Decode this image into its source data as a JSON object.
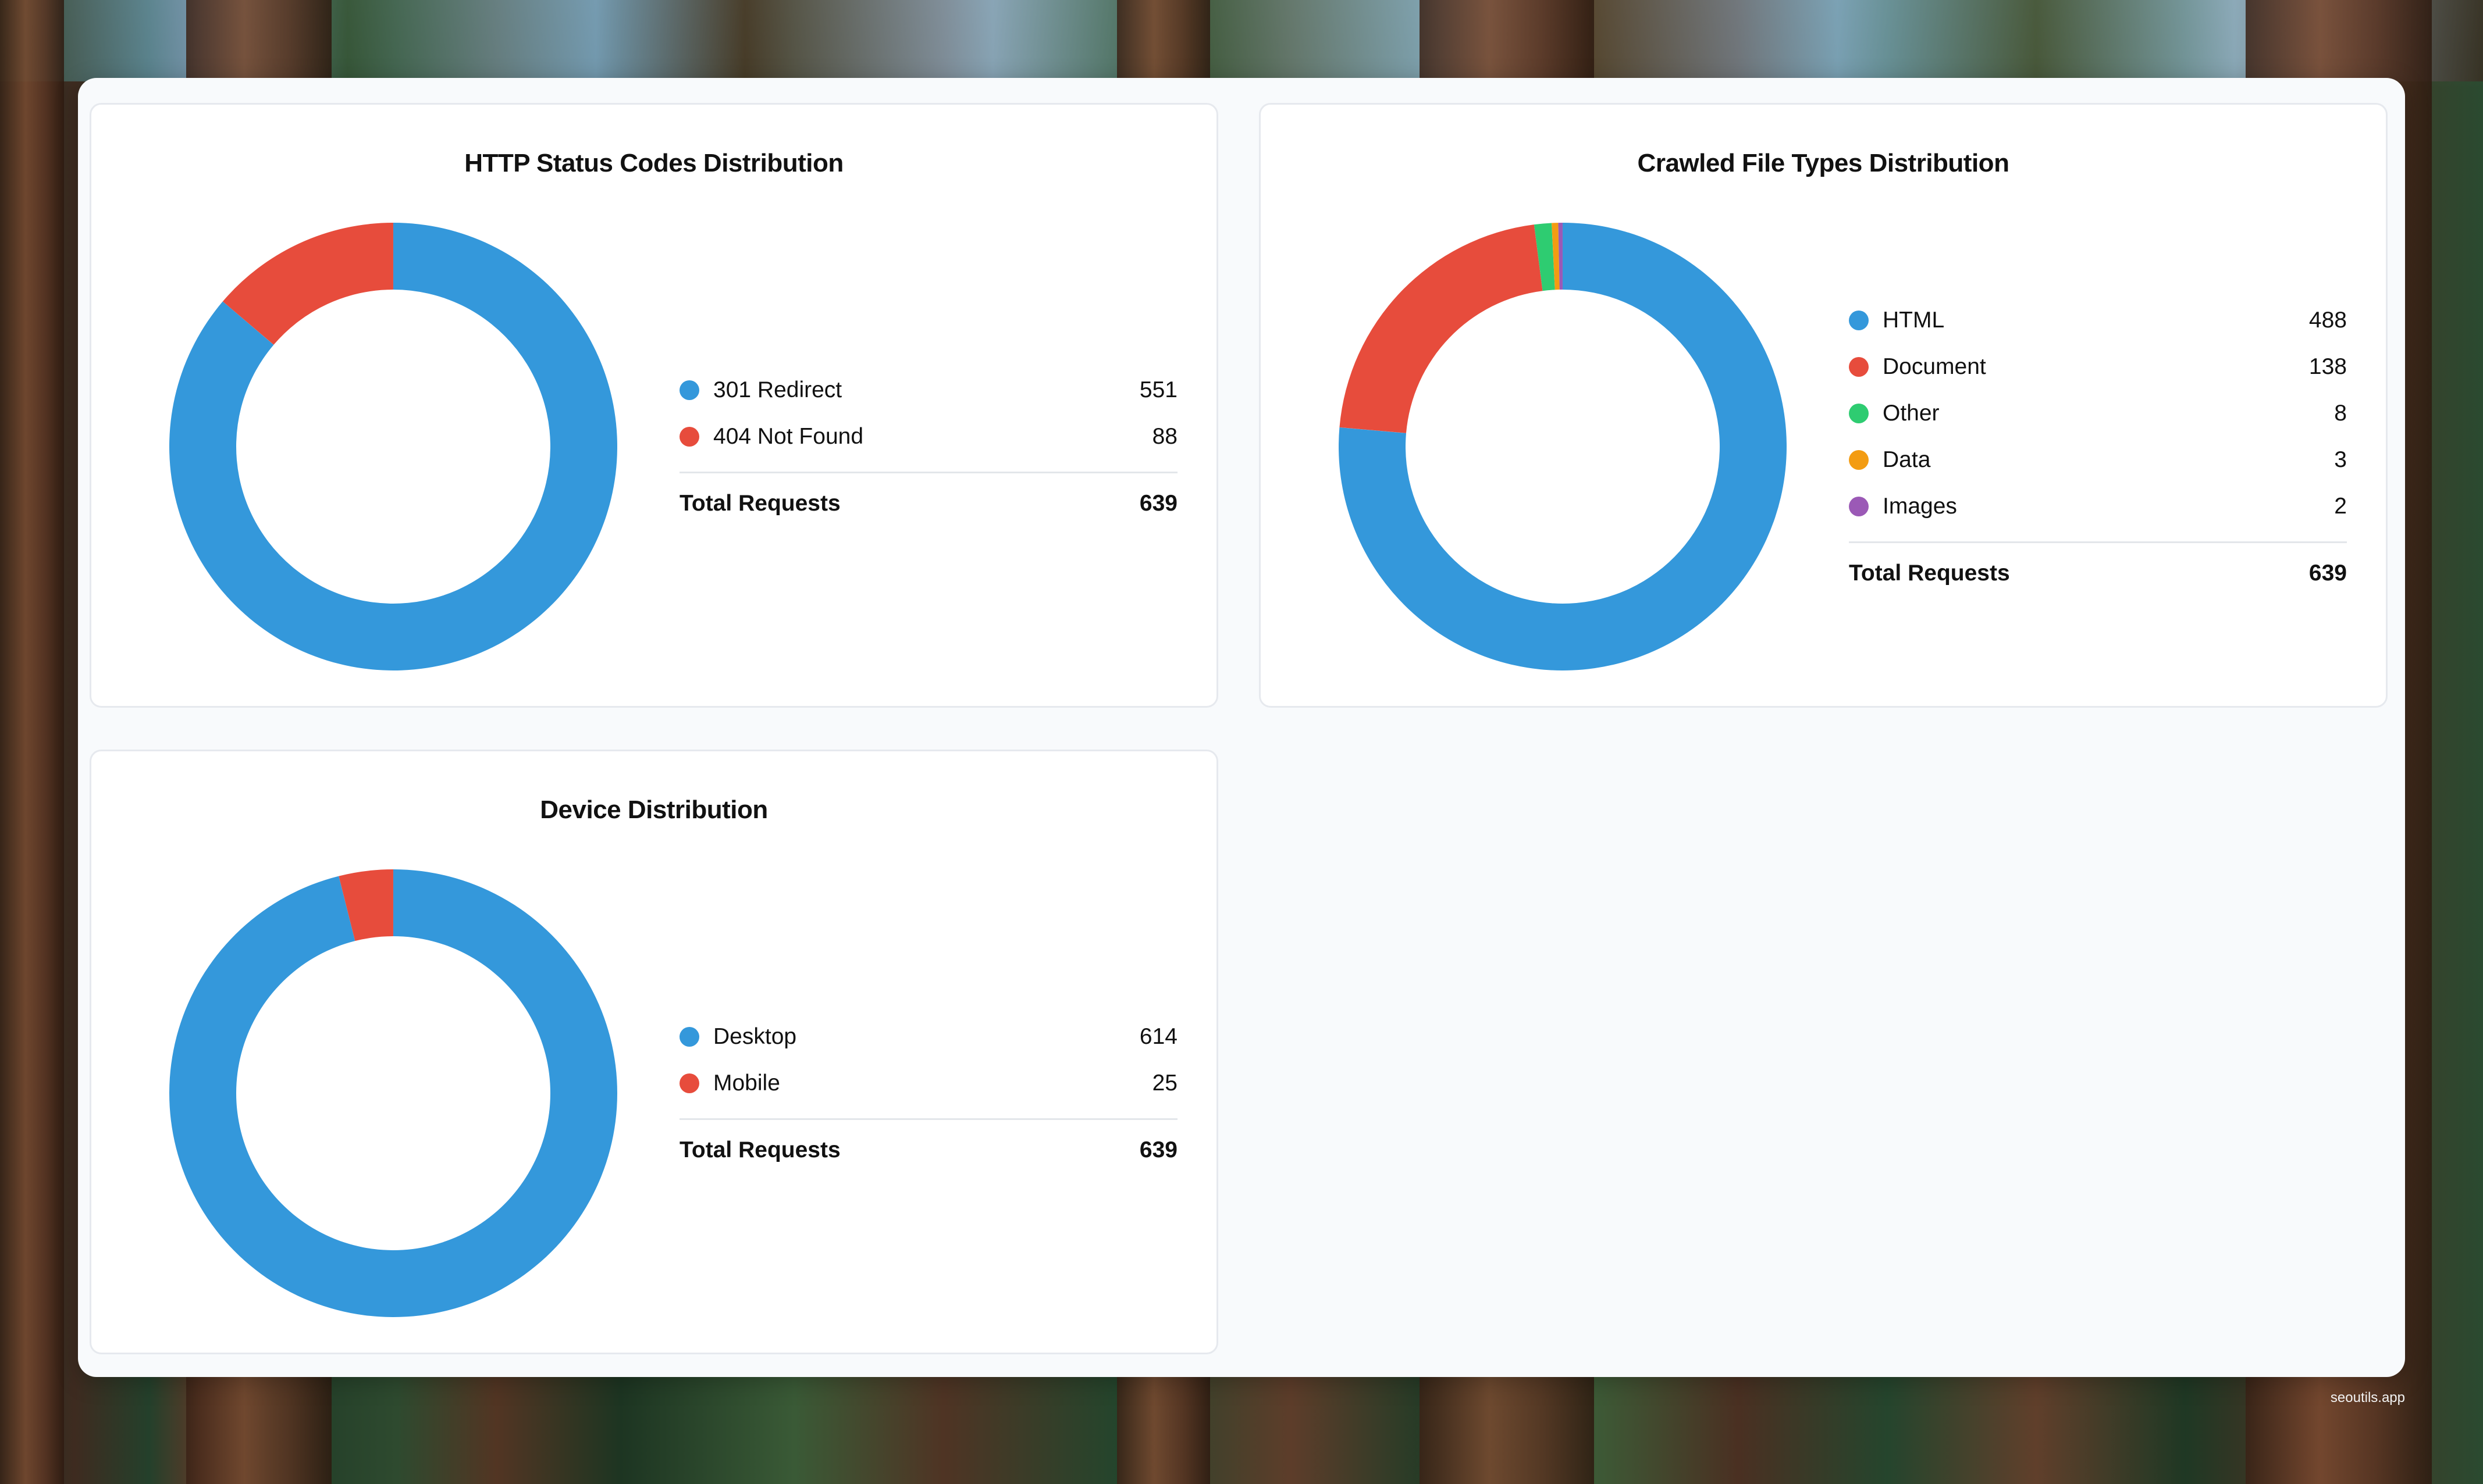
{
  "footer": {
    "brand": "seoutils.app"
  },
  "colors": {
    "blue": "#3498db",
    "red": "#e74c3c",
    "green": "#2ecc71",
    "orange": "#f39c12",
    "purple": "#9b59b6"
  },
  "chart_data": [
    {
      "type": "pie",
      "title": "HTTP Status Codes Distribution",
      "categories": [
        "301 Redirect",
        "404 Not Found"
      ],
      "values": [
        551,
        88
      ],
      "colors": [
        "#3498db",
        "#e74c3c"
      ],
      "total_label": "Total Requests",
      "total": 639,
      "legend": "right"
    },
    {
      "type": "pie",
      "title": "Crawled File Types Distribution",
      "categories": [
        "HTML",
        "Document",
        "Other",
        "Data",
        "Images"
      ],
      "values": [
        488,
        138,
        8,
        3,
        2
      ],
      "colors": [
        "#3498db",
        "#e74c3c",
        "#2ecc71",
        "#f39c12",
        "#9b59b6"
      ],
      "total_label": "Total Requests",
      "total": 639,
      "legend": "right"
    },
    {
      "type": "pie",
      "title": "Device Distribution",
      "categories": [
        "Desktop",
        "Mobile"
      ],
      "values": [
        614,
        25
      ],
      "colors": [
        "#3498db",
        "#e74c3c"
      ],
      "total_label": "Total Requests",
      "total": 639,
      "legend": "right"
    }
  ]
}
